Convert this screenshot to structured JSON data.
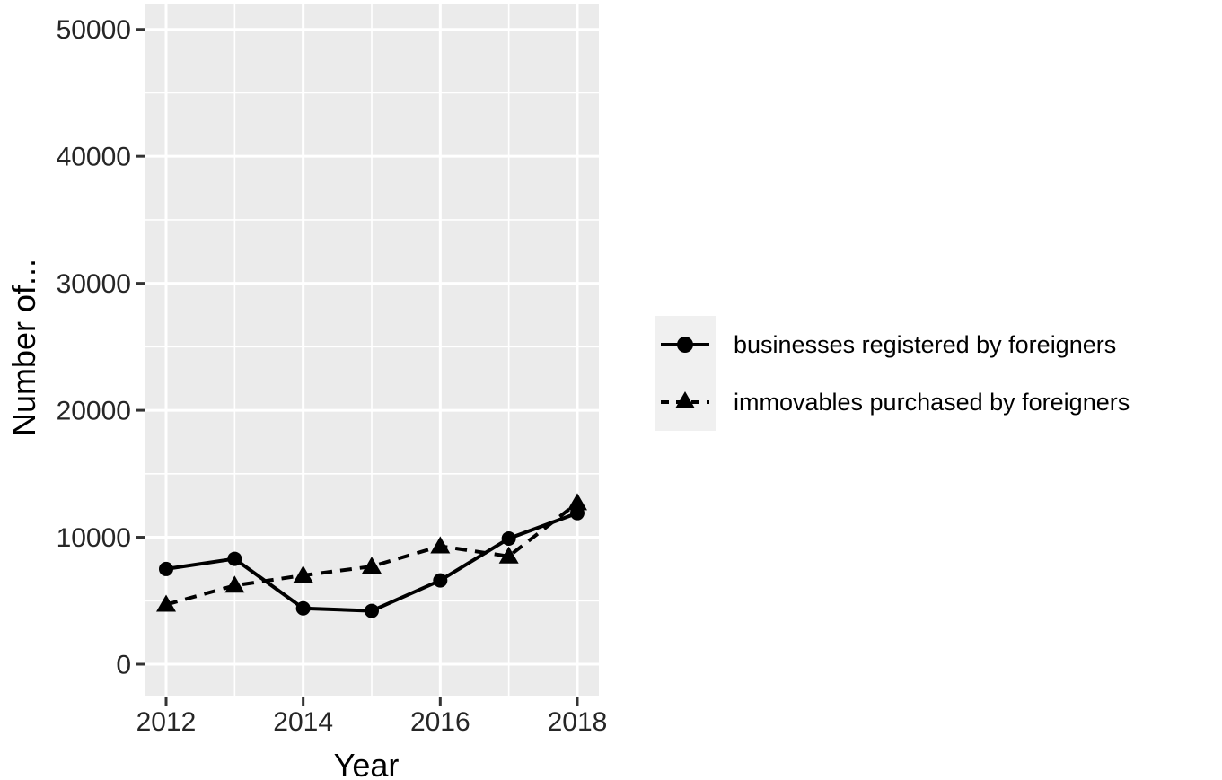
{
  "figure": {
    "background_color": "#ffffff"
  },
  "chart_data": {
    "type": "line",
    "title": "",
    "xlabel": "Year",
    "ylabel": "Number of...",
    "x": [
      2012,
      2013,
      2014,
      2015,
      2016,
      2017,
      2018
    ],
    "series": [
      {
        "name": "businesses registered by foreigners",
        "values": [
          7500,
          8300,
          4400,
          4200,
          6600,
          9900,
          11900
        ],
        "marker": "circle",
        "line_style": "solid",
        "color": "#000000"
      },
      {
        "name": "immovables purchased by foreigners",
        "values": [
          4700,
          6200,
          7000,
          7700,
          9300,
          8500,
          12700
        ],
        "marker": "triangle",
        "line_style": "dashed",
        "color": "#000000"
      }
    ],
    "xlim": [
      2011.7,
      2018.31
    ],
    "ylim": [
      0,
      50000
    ],
    "x_ticks": [
      2012,
      2014,
      2016,
      2018
    ],
    "x_tick_labels": [
      "2012",
      "2014",
      "2016",
      "2018"
    ],
    "x_minor_ticks": [
      2013,
      2015,
      2017
    ],
    "y_ticks": [
      0,
      10000,
      20000,
      30000,
      40000,
      50000
    ],
    "y_tick_labels": [
      "0",
      "10000",
      "20000",
      "30000",
      "40000",
      "50000"
    ],
    "y_minor_ticks": [
      5000,
      15000,
      25000,
      35000,
      45000
    ],
    "grid": true,
    "legend_position": "right",
    "style": {
      "panel_background": "#EBEBEB",
      "gridline_color": "#FFFFFF",
      "legend_key_background": "#F0F0F0",
      "tick_color": "#333333",
      "tick_label_color": "#262626",
      "text_color": "#000000"
    }
  }
}
